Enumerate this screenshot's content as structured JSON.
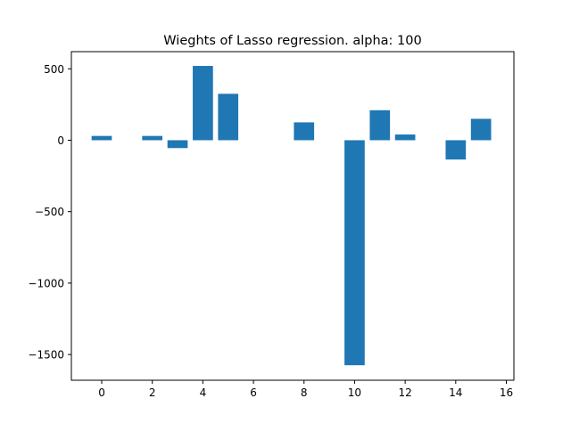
{
  "chart_data": {
    "type": "bar",
    "title": "Wieghts of Lasso regression. alpha: 100",
    "xlabel": "",
    "ylabel": "",
    "x": [
      0,
      1,
      2,
      3,
      4,
      5,
      6,
      7,
      8,
      9,
      10,
      11,
      12,
      13,
      14,
      15
    ],
    "values": [
      30,
      0,
      30,
      -55,
      520,
      325,
      0,
      0,
      125,
      0,
      -1575,
      210,
      40,
      0,
      -135,
      150
    ],
    "xlim": [
      -1.2,
      16.3
    ],
    "ylim": [
      -1680,
      620
    ],
    "xticks": [
      0,
      2,
      4,
      6,
      8,
      10,
      12,
      14,
      16
    ],
    "xtick_labels": [
      "0",
      "2",
      "4",
      "6",
      "8",
      "10",
      "12",
      "14",
      "16"
    ],
    "yticks": [
      500,
      0,
      -500,
      -1000,
      -1500
    ],
    "ytick_labels": [
      "500",
      "0",
      "−500",
      "−1000",
      "−1500"
    ],
    "bar_color": "#1f77b4",
    "grid": false
  }
}
